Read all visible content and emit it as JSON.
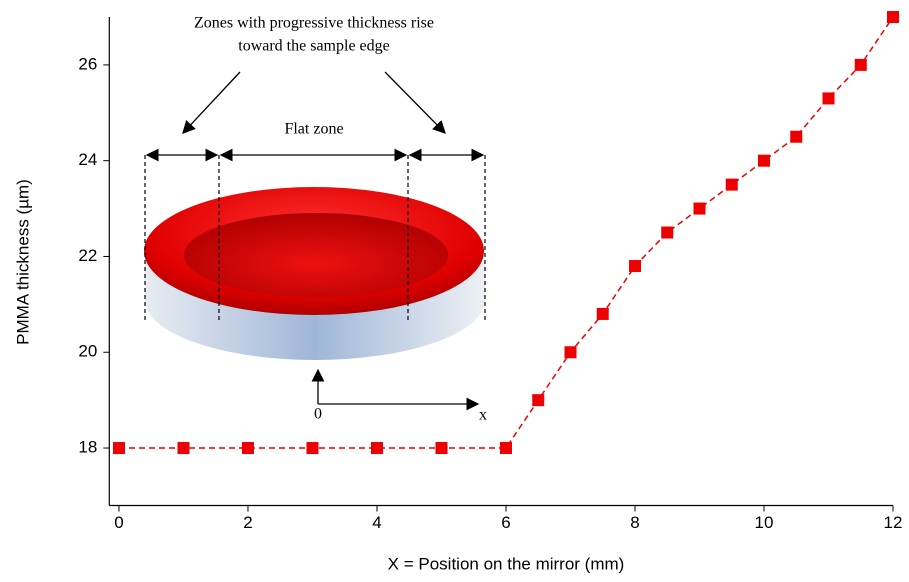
{
  "chart_data": {
    "type": "line",
    "x_label": "X = Position on the mirror (mm)",
    "y_label": "PMMA thickness (µm)",
    "x": [
      0,
      1,
      2,
      3,
      4,
      5,
      6,
      6.5,
      7,
      7.5,
      8,
      8.5,
      9,
      9.5,
      10,
      10.5,
      11,
      11.5,
      12
    ],
    "series": [
      {
        "color": "#ee0000",
        "values": [
          18,
          18,
          18,
          18,
          18,
          18,
          18,
          19,
          20,
          20.8,
          21.8,
          22.5,
          23,
          23.5,
          24,
          24.5,
          25.3,
          26,
          27
        ]
      }
    ],
    "xlim": [
      -0.15,
      12
    ],
    "ylim": [
      16.8,
      27
    ],
    "xticks": [
      0,
      2,
      4,
      6,
      8,
      10,
      12
    ],
    "yticks": [
      18,
      20,
      22,
      24,
      26
    ],
    "grid": false,
    "annotations": {
      "zones": [
        "Zones with progressive thickness rise",
        "toward the sample edge"
      ],
      "flat_zone": "Flat zone",
      "origin": "0",
      "x_axis": "x"
    }
  }
}
